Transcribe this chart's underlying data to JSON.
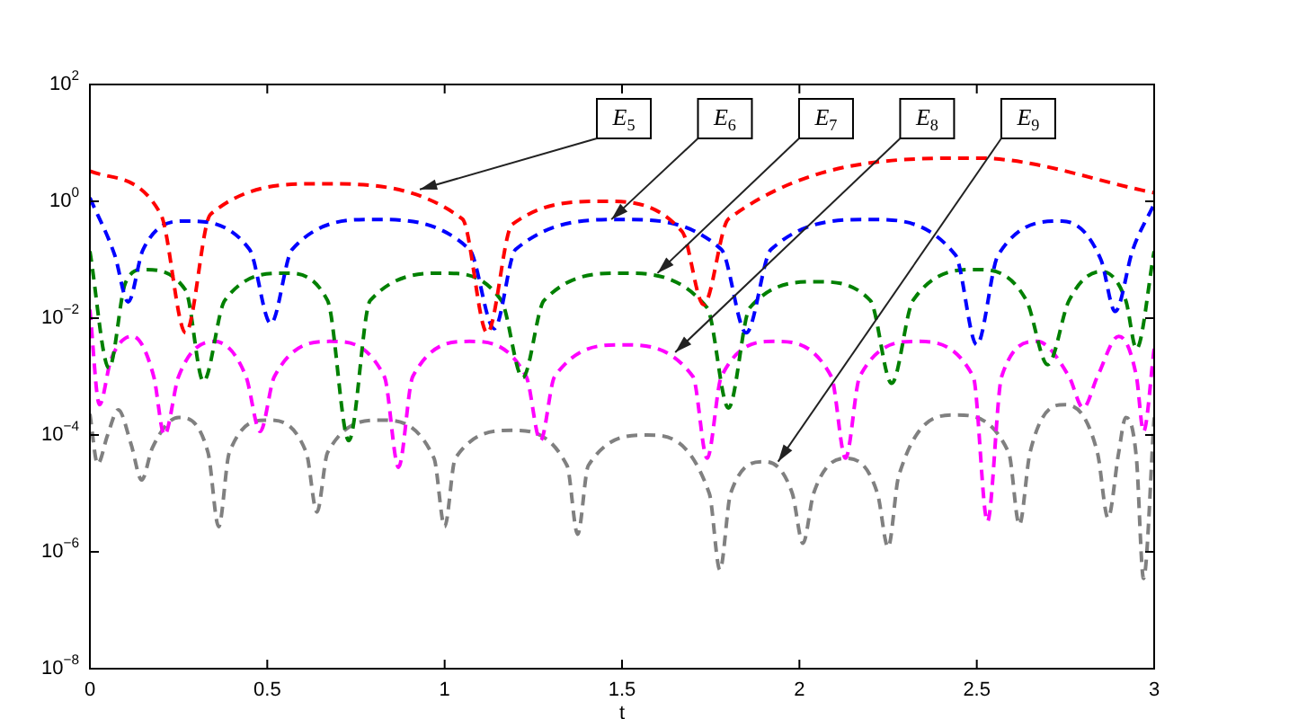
{
  "chart_data": {
    "type": "line",
    "xlabel": "t",
    "xlim": [
      0,
      3
    ],
    "xticks": [
      0,
      0.5,
      1,
      1.5,
      2,
      2.5,
      3
    ],
    "log": "y",
    "ylim": [
      1e-08,
      100
    ],
    "yticks": [
      {
        "value": 1e-08,
        "label": "10$^{−8}$"
      },
      {
        "value": 1e-06,
        "label": "10$^{−6}$"
      },
      {
        "value": 0.0001,
        "label": "10$^{−4}$"
      },
      {
        "value": 0.01,
        "label": "10$^{−2}$"
      },
      {
        "value": 1,
        "label": "10$^{0}$"
      },
      {
        "value": 100,
        "label": "10$^{2}$"
      }
    ],
    "grid": false,
    "legend": false,
    "marker": "none",
    "line_style": "dashed",
    "series": [
      {
        "color": "#ff0000",
        "x": [
          0,
          0.2,
          0.27,
          0.34,
          0.65,
          1.05,
          1.12,
          1.19,
          1.45,
          1.67,
          1.73,
          1.8,
          2.5,
          3
        ],
        "values": [
          3.3,
          0.6,
          0.0056,
          0.6,
          2.0,
          0.5,
          0.0056,
          0.4,
          1.0,
          0.3,
          0.017,
          0.5,
          5.5,
          1.4
        ]
      },
      {
        "color": "#0000ff",
        "x": [
          0,
          0.07,
          0.108,
          0.15,
          0.27,
          0.45,
          0.51,
          0.57,
          0.8,
          1.07,
          1.14,
          1.2,
          1.5,
          1.78,
          1.85,
          1.92,
          2.2,
          2.44,
          2.5,
          2.56,
          2.74,
          2.85,
          2.89,
          2.94,
          3
        ],
        "values": [
          1.15,
          0.12,
          0.019,
          0.15,
          0.46,
          0.15,
          0.0081,
          0.15,
          0.49,
          0.15,
          0.0066,
          0.15,
          0.49,
          0.15,
          0.0056,
          0.15,
          0.49,
          0.12,
          0.0035,
          0.12,
          0.46,
          0.1,
          0.013,
          0.15,
          0.9
        ]
      },
      {
        "color": "#008000",
        "x": [
          0,
          0.054,
          0.1,
          0.15,
          0.27,
          0.32,
          0.38,
          0.55,
          0.67,
          0.73,
          0.79,
          1.0,
          1.16,
          1.22,
          1.28,
          1.5,
          1.74,
          1.8,
          1.86,
          2.05,
          2.2,
          2.26,
          2.32,
          2.5,
          2.64,
          2.7,
          2.76,
          2.85,
          2.92,
          2.95,
          3
        ],
        "values": [
          0.14,
          0.0014,
          0.04,
          0.068,
          0.03,
          0.00083,
          0.02,
          0.059,
          0.02,
          8e-05,
          0.02,
          0.059,
          0.02,
          0.00096,
          0.02,
          0.059,
          0.015,
          0.00029,
          0.015,
          0.042,
          0.02,
          0.00077,
          0.02,
          0.068,
          0.02,
          0.0016,
          0.02,
          0.063,
          0.02,
          0.003,
          0.14
        ]
      },
      {
        "color": "#ff00ff",
        "x": [
          0,
          0.027,
          0.06,
          0.12,
          0.18,
          0.21,
          0.25,
          0.35,
          0.44,
          0.48,
          0.52,
          0.68,
          0.83,
          0.87,
          0.91,
          1.07,
          1.23,
          1.27,
          1.31,
          1.5,
          1.7,
          1.74,
          1.78,
          1.93,
          2.09,
          2.13,
          2.17,
          2.33,
          2.49,
          2.53,
          2.57,
          2.67,
          2.76,
          2.8,
          2.84,
          2.9,
          2.95,
          2.97,
          3
        ],
        "values": [
          0.014,
          0.00033,
          0.002,
          0.0049,
          0.001,
          0.0001,
          0.001,
          0.004,
          0.001,
          0.000115,
          0.001,
          0.004,
          0.001,
          2.8e-05,
          0.001,
          0.004,
          0.001,
          8e-05,
          0.001,
          0.0035,
          0.001,
          4e-05,
          0.001,
          0.004,
          0.001,
          4e-05,
          0.001,
          0.004,
          0.001,
          3.3e-06,
          0.001,
          0.004,
          0.001,
          0.00029,
          0.001,
          0.0049,
          0.001,
          0.000115,
          0.003
        ]
      },
      {
        "color": "#808080",
        "x": [
          0,
          0.022,
          0.05,
          0.08,
          0.116,
          0.146,
          0.176,
          0.25,
          0.333,
          0.363,
          0.393,
          0.5,
          0.61,
          0.64,
          0.67,
          0.82,
          0.97,
          1.0,
          1.03,
          1.19,
          1.345,
          1.375,
          1.405,
          1.57,
          1.746,
          1.776,
          1.806,
          1.9,
          1.98,
          2.01,
          2.04,
          2.13,
          2.22,
          2.25,
          2.28,
          2.44,
          2.59,
          2.62,
          2.65,
          2.75,
          2.84,
          2.87,
          2.9,
          2.92,
          2.95,
          2.97,
          3
        ],
        "values": [
          0.00023,
          3.2e-05,
          0.0001,
          0.00027,
          7e-05,
          1.7e-05,
          6e-05,
          0.0002,
          5e-05,
          2.7e-06,
          5e-05,
          0.00018,
          5e-05,
          4.8e-06,
          5e-05,
          0.00018,
          4e-05,
          2.7e-06,
          4e-05,
          0.00012,
          3e-05,
          2e-06,
          3e-05,
          0.0001,
          1e-05,
          4.9e-07,
          1e-05,
          3.5e-05,
          1e-05,
          1.4e-06,
          1e-05,
          4e-05,
          1e-05,
          1.2e-06,
          2e-05,
          0.00022,
          5e-05,
          2.9e-06,
          5e-05,
          0.00033,
          5e-05,
          3.8e-06,
          5e-05,
          0.0002,
          4e-05,
          3.5e-07,
          0.0002
        ]
      }
    ],
    "annotations": [
      {
        "text": "E$_{5}$",
        "x": 0.93,
        "y": 1.6
      },
      {
        "text": "E$_{6}$",
        "x": 1.47,
        "y": 0.49
      },
      {
        "text": "E$_{7}$",
        "x": 1.6,
        "y": 0.059
      },
      {
        "text": "E$_{8}$",
        "x": 1.65,
        "y": 0.0026
      },
      {
        "text": "E$_{9}$",
        "x": 1.94,
        "y": 3.5e-05
      }
    ]
  }
}
